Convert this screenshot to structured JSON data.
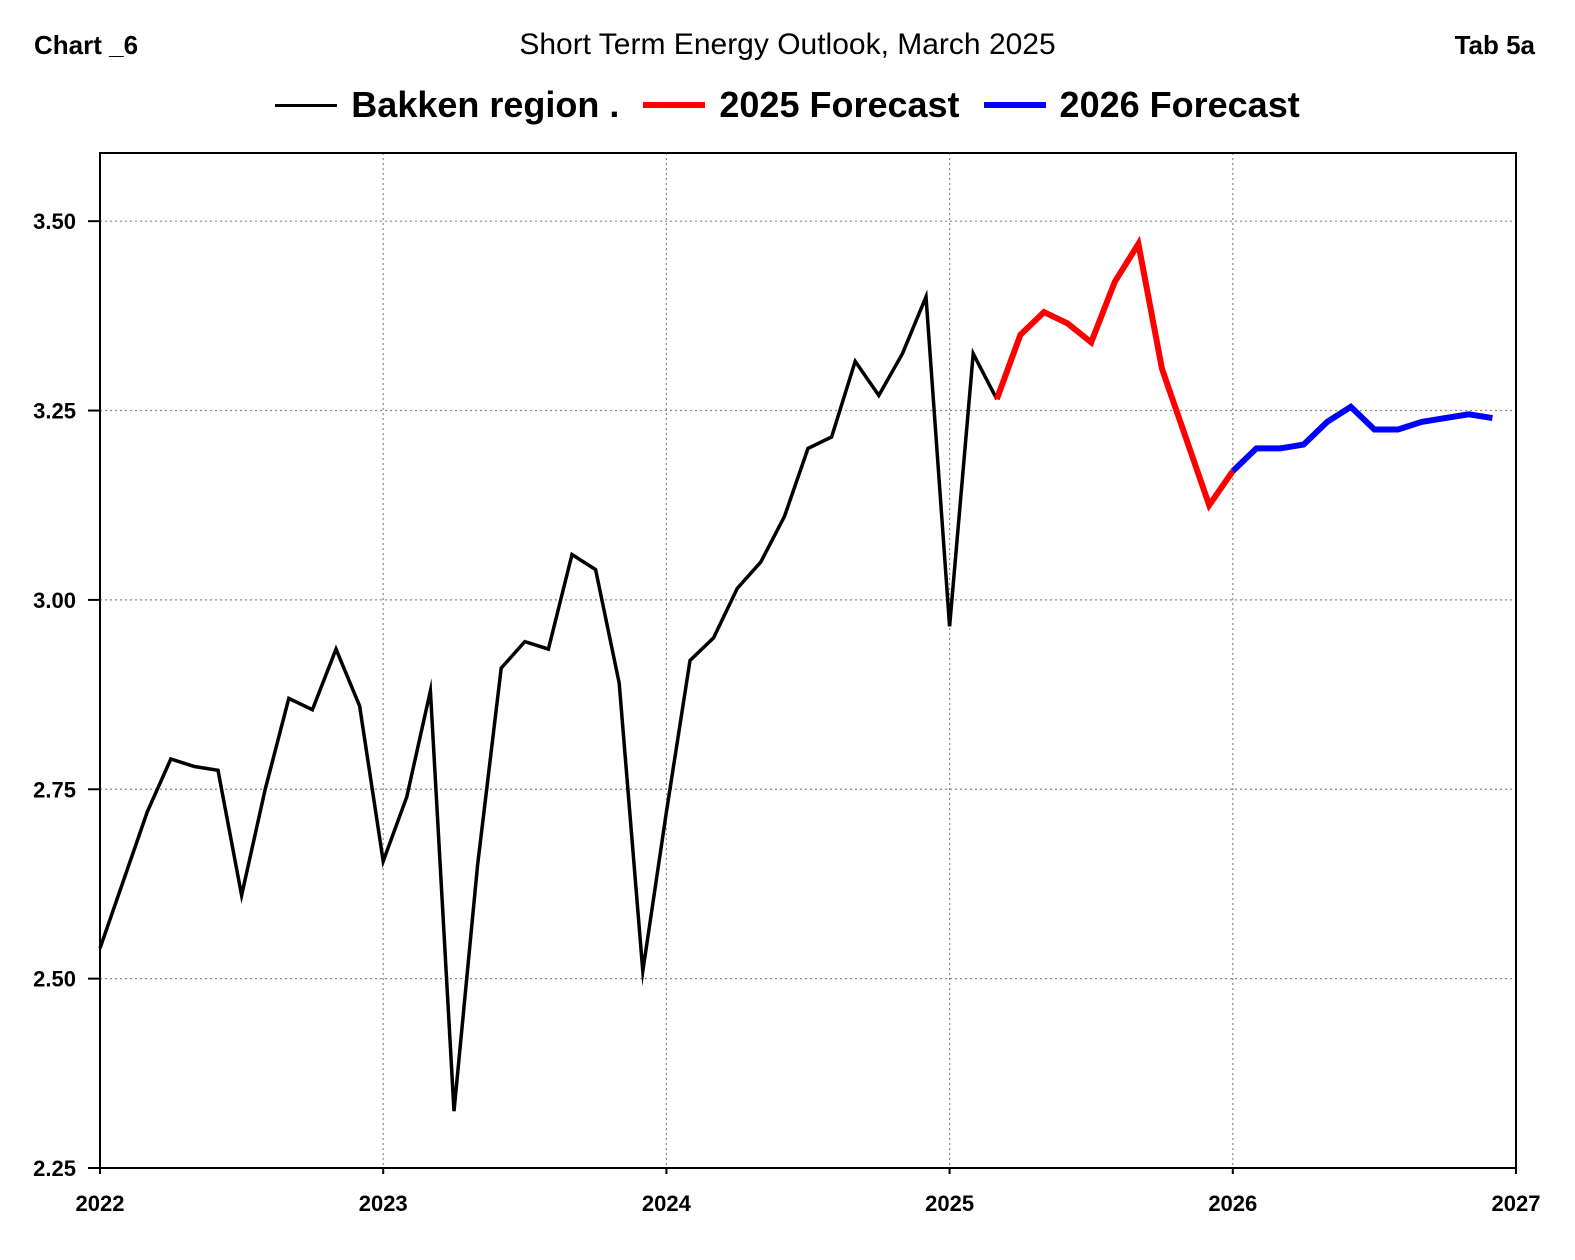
{
  "header": {
    "chart_label": "Chart _6",
    "title": "Short Term Energy Outlook, March 2025",
    "tab_label": "Tab 5a"
  },
  "colors": {
    "history": "#000000",
    "forecast_2025": "#ff0000",
    "forecast_2026": "#0000ff",
    "grid": "#888888"
  },
  "chart_data": {
    "type": "line",
    "title": "Short Term Energy Outlook, March 2025",
    "xlabel": "",
    "ylabel": "",
    "x_range": [
      "2022-01",
      "2027-01"
    ],
    "ylim": [
      2.25,
      3.59
    ],
    "x_ticks": [
      "2022",
      "2023",
      "2024",
      "2025",
      "2026",
      "2027"
    ],
    "y_ticks": [
      "2.25",
      "2.50",
      "2.75",
      "3.00",
      "3.25",
      "3.50"
    ],
    "grid": true,
    "legend_position": "top-center",
    "series": [
      {
        "name": "Bakken region .",
        "color": "#000000",
        "points": [
          [
            "2022-01",
            2.54
          ],
          [
            "2022-02",
            2.63
          ],
          [
            "2022-03",
            2.72
          ],
          [
            "2022-04",
            2.79
          ],
          [
            "2022-05",
            2.78
          ],
          [
            "2022-06",
            2.775
          ],
          [
            "2022-07",
            2.61
          ],
          [
            "2022-08",
            2.75
          ],
          [
            "2022-09",
            2.87
          ],
          [
            "2022-10",
            2.855
          ],
          [
            "2022-11",
            2.935
          ],
          [
            "2022-12",
            2.86
          ],
          [
            "2023-01",
            2.655
          ],
          [
            "2023-02",
            2.74
          ],
          [
            "2023-03",
            2.88
          ],
          [
            "2023-04",
            2.325
          ],
          [
            "2023-05",
            2.65
          ],
          [
            "2023-06",
            2.91
          ],
          [
            "2023-07",
            2.945
          ],
          [
            "2023-08",
            2.935
          ],
          [
            "2023-09",
            3.06
          ],
          [
            "2023-10",
            3.04
          ],
          [
            "2023-11",
            2.89
          ],
          [
            "2023-12",
            2.51
          ],
          [
            "2024-01",
            2.72
          ],
          [
            "2024-02",
            2.92
          ],
          [
            "2024-03",
            2.95
          ],
          [
            "2024-04",
            3.015
          ],
          [
            "2024-05",
            3.05
          ],
          [
            "2024-06",
            3.11
          ],
          [
            "2024-07",
            3.2
          ],
          [
            "2024-08",
            3.215
          ],
          [
            "2024-09",
            3.315
          ],
          [
            "2024-10",
            3.27
          ],
          [
            "2024-11",
            3.325
          ],
          [
            "2024-12",
            3.4
          ],
          [
            "2025-01",
            2.965
          ],
          [
            "2025-02",
            3.325
          ],
          [
            "2025-03",
            3.265
          ]
        ]
      },
      {
        "name": "2025 Forecast",
        "color": "#ff0000",
        "points": [
          [
            "2025-03",
            3.265
          ],
          [
            "2025-04",
            3.35
          ],
          [
            "2025-05",
            3.38
          ],
          [
            "2025-06",
            3.365
          ],
          [
            "2025-07",
            3.34
          ],
          [
            "2025-08",
            3.42
          ],
          [
            "2025-09",
            3.47
          ],
          [
            "2025-10",
            3.305
          ],
          [
            "2025-11",
            3.215
          ],
          [
            "2025-12",
            3.125
          ],
          [
            "2026-01",
            3.17
          ]
        ]
      },
      {
        "name": "2026 Forecast",
        "color": "#0000ff",
        "points": [
          [
            "2026-01",
            3.17
          ],
          [
            "2026-02",
            3.2
          ],
          [
            "2026-03",
            3.2
          ],
          [
            "2026-04",
            3.205
          ],
          [
            "2026-05",
            3.235
          ],
          [
            "2026-06",
            3.255
          ],
          [
            "2026-07",
            3.225
          ],
          [
            "2026-08",
            3.225
          ],
          [
            "2026-09",
            3.235
          ],
          [
            "2026-10",
            3.24
          ],
          [
            "2026-11",
            3.245
          ],
          [
            "2026-12",
            3.24
          ]
        ]
      }
    ]
  }
}
